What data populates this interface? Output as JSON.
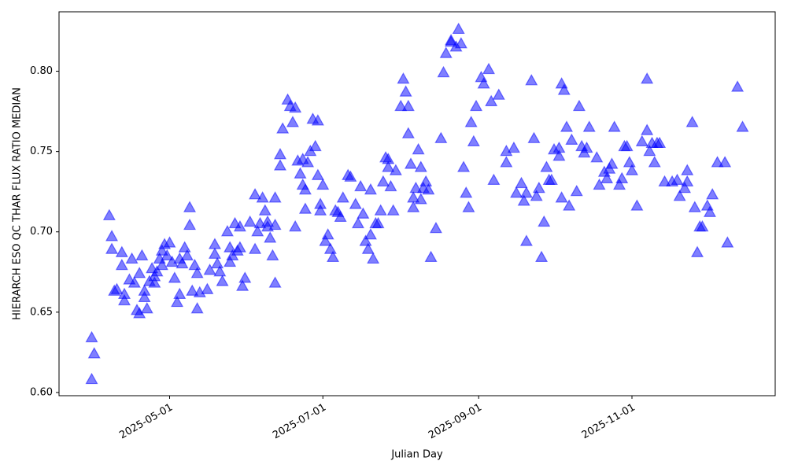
{
  "chart_data": {
    "type": "scatter",
    "xlabel": "Julian Day",
    "ylabel": "HIERARCH ESO QC THAR FLUX RATIO MEDIAN",
    "color": "#0000ff",
    "xlim": [
      "2025-03-18",
      "2025-12-28"
    ],
    "xticks": [
      "2025-05-01",
      "2025-07-01",
      "2025-09-01",
      "2025-11-01"
    ],
    "ylim": [
      0.598,
      0.837
    ],
    "yticks": [
      {
        "value": 0.6,
        "label": "0.60"
      },
      0.65,
      {
        "value": 0.7,
        "label": "0.70"
      },
      0.75,
      {
        "value": 0.8,
        "label": "0.80"
      }
    ],
    "x": [
      "2025-03-31",
      "2025-03-31",
      "2025-04-01",
      "2025-04-07",
      "2025-04-08",
      "2025-04-08",
      "2025-04-09",
      "2025-04-10",
      "2025-04-12",
      "2025-04-12",
      "2025-04-13",
      "2025-04-13",
      "2025-04-15",
      "2025-04-16",
      "2025-04-17",
      "2025-04-18",
      "2025-04-19",
      "2025-04-19",
      "2025-04-20",
      "2025-04-21",
      "2025-04-21",
      "2025-04-22",
      "2025-04-23",
      "2025-04-24",
      "2025-04-25",
      "2025-04-25",
      "2025-04-26",
      "2025-04-27",
      "2025-04-28",
      "2025-04-28",
      "2025-04-29",
      "2025-04-30",
      "2025-05-01",
      "2025-05-02",
      "2025-05-03",
      "2025-05-04",
      "2025-05-05",
      "2025-05-05",
      "2025-05-06",
      "2025-05-07",
      "2025-05-08",
      "2025-05-09",
      "2025-05-09",
      "2025-05-10",
      "2025-05-11",
      "2025-05-12",
      "2025-05-12",
      "2025-05-13",
      "2025-05-16",
      "2025-05-17",
      "2025-05-19",
      "2025-05-19",
      "2025-05-20",
      "2025-05-21",
      "2025-05-22",
      "2025-05-24",
      "2025-05-25",
      "2025-05-25",
      "2025-05-26",
      "2025-05-27",
      "2025-05-28",
      "2025-05-29",
      "2025-05-29",
      "2025-05-30",
      "2025-05-31",
      "2025-06-02",
      "2025-06-04",
      "2025-06-04",
      "2025-06-05",
      "2025-06-06",
      "2025-06-07",
      "2025-06-08",
      "2025-06-09",
      "2025-06-09",
      "2025-06-10",
      "2025-06-11",
      "2025-06-12",
      "2025-06-12",
      "2025-06-12",
      "2025-06-14",
      "2025-06-14",
      "2025-06-15",
      "2025-06-17",
      "2025-06-18",
      "2025-06-19",
      "2025-06-20",
      "2025-06-20",
      "2025-06-21",
      "2025-06-22",
      "2025-06-23",
      "2025-06-23",
      "2025-06-24",
      "2025-06-24",
      "2025-06-25",
      "2025-06-26",
      "2025-06-27",
      "2025-06-28",
      "2025-06-29",
      "2025-06-29",
      "2025-06-30",
      "2025-06-30",
      "2025-07-01",
      "2025-07-02",
      "2025-07-03",
      "2025-07-04",
      "2025-07-05",
      "2025-07-06",
      "2025-07-07",
      "2025-07-08",
      "2025-07-09",
      "2025-07-11",
      "2025-07-12",
      "2025-07-14",
      "2025-07-15",
      "2025-07-16",
      "2025-07-17",
      "2025-07-18",
      "2025-07-19",
      "2025-07-20",
      "2025-07-20",
      "2025-07-21",
      "2025-07-22",
      "2025-07-23",
      "2025-07-24",
      "2025-07-25",
      "2025-07-26",
      "2025-07-27",
      "2025-07-27",
      "2025-07-28",
      "2025-07-29",
      "2025-07-30",
      "2025-08-01",
      "2025-08-02",
      "2025-08-03",
      "2025-08-04",
      "2025-08-04",
      "2025-08-05",
      "2025-08-06",
      "2025-08-06",
      "2025-08-07",
      "2025-08-08",
      "2025-08-09",
      "2025-08-09",
      "2025-08-10",
      "2025-08-11",
      "2025-08-12",
      "2025-08-13",
      "2025-08-15",
      "2025-08-17",
      "2025-08-18",
      "2025-08-19",
      "2025-08-21",
      "2025-08-21",
      "2025-08-23",
      "2025-08-24",
      "2025-08-25",
      "2025-08-26",
      "2025-08-27",
      "2025-08-28",
      "2025-08-29",
      "2025-08-30",
      "2025-08-31",
      "2025-09-02",
      "2025-09-03",
      "2025-09-05",
      "2025-09-06",
      "2025-09-07",
      "2025-09-09",
      "2025-09-12",
      "2025-09-12",
      "2025-09-15",
      "2025-09-16",
      "2025-09-18",
      "2025-09-19",
      "2025-09-20",
      "2025-09-20",
      "2025-09-22",
      "2025-09-23",
      "2025-09-24",
      "2025-09-25",
      "2025-09-26",
      "2025-09-27",
      "2025-09-28",
      "2025-09-29",
      "2025-09-30",
      "2025-10-01",
      "2025-10-03",
      "2025-10-03",
      "2025-10-04",
      "2025-10-04",
      "2025-10-05",
      "2025-10-06",
      "2025-10-07",
      "2025-10-08",
      "2025-10-10",
      "2025-10-11",
      "2025-10-12",
      "2025-10-13",
      "2025-10-14",
      "2025-10-15",
      "2025-10-18",
      "2025-10-19",
      "2025-10-21",
      "2025-10-22",
      "2025-10-23",
      "2025-10-24",
      "2025-10-25",
      "2025-10-27",
      "2025-10-28",
      "2025-10-29",
      "2025-10-30",
      "2025-10-31",
      "2025-11-01",
      "2025-11-03",
      "2025-11-05",
      "2025-11-07",
      "2025-11-07",
      "2025-11-08",
      "2025-11-09",
      "2025-11-10",
      "2025-11-11",
      "2025-11-12",
      "2025-11-14",
      "2025-11-17",
      "2025-11-19",
      "2025-11-20",
      "2025-11-22",
      "2025-11-23",
      "2025-11-23",
      "2025-11-25",
      "2025-11-26",
      "2025-11-27",
      "2025-11-28",
      "2025-11-29",
      "2025-12-01",
      "2025-12-02",
      "2025-12-03",
      "2025-12-05",
      "2025-12-08",
      "2025-12-09",
      "2025-12-13",
      "2025-12-15"
    ],
    "values": [
      0.634,
      0.608,
      0.624,
      0.71,
      0.697,
      0.689,
      0.663,
      0.664,
      0.687,
      0.679,
      0.661,
      0.657,
      0.67,
      0.683,
      0.668,
      0.651,
      0.674,
      0.649,
      0.685,
      0.663,
      0.659,
      0.652,
      0.669,
      0.677,
      0.668,
      0.672,
      0.675,
      0.683,
      0.679,
      0.688,
      0.692,
      0.685,
      0.693,
      0.681,
      0.671,
      0.656,
      0.683,
      0.661,
      0.68,
      0.69,
      0.685,
      0.704,
      0.715,
      0.663,
      0.679,
      0.652,
      0.674,
      0.662,
      0.664,
      0.676,
      0.686,
      0.692,
      0.68,
      0.675,
      0.669,
      0.7,
      0.69,
      0.681,
      0.685,
      0.705,
      0.688,
      0.703,
      0.69,
      0.666,
      0.671,
      0.706,
      0.689,
      0.723,
      0.7,
      0.705,
      0.721,
      0.713,
      0.706,
      0.703,
      0.696,
      0.685,
      0.668,
      0.704,
      0.721,
      0.741,
      0.748,
      0.764,
      0.782,
      0.778,
      0.768,
      0.777,
      0.703,
      0.744,
      0.736,
      0.729,
      0.745,
      0.714,
      0.726,
      0.743,
      0.75,
      0.77,
      0.753,
      0.769,
      0.735,
      0.713,
      0.717,
      0.729,
      0.694,
      0.698,
      0.689,
      0.684,
      0.713,
      0.712,
      0.709,
      0.721,
      0.735,
      0.734,
      0.717,
      0.705,
      0.728,
      0.711,
      0.694,
      0.689,
      0.698,
      0.726,
      0.683,
      0.705,
      0.705,
      0.713,
      0.731,
      0.746,
      0.74,
      0.745,
      0.728,
      0.713,
      0.738,
      0.778,
      0.795,
      0.787,
      0.778,
      0.761,
      0.742,
      0.715,
      0.721,
      0.727,
      0.751,
      0.74,
      0.72,
      0.727,
      0.731,
      0.726,
      0.684,
      0.702,
      0.758,
      0.799,
      0.811,
      0.819,
      0.818,
      0.815,
      0.826,
      0.817,
      0.74,
      0.724,
      0.715,
      0.768,
      0.756,
      0.778,
      0.796,
      0.792,
      0.801,
      0.781,
      0.732,
      0.785,
      0.743,
      0.75,
      0.752,
      0.724,
      0.73,
      0.719,
      0.724,
      0.694,
      0.794,
      0.758,
      0.722,
      0.727,
      0.684,
      0.706,
      0.74,
      0.732,
      0.732,
      0.751,
      0.747,
      0.752,
      0.721,
      0.792,
      0.788,
      0.765,
      0.716,
      0.757,
      0.725,
      0.778,
      0.753,
      0.749,
      0.752,
      0.765,
      0.746,
      0.729,
      0.737,
      0.733,
      0.739,
      0.742,
      0.765,
      0.729,
      0.733,
      0.753,
      0.753,
      0.743,
      0.738,
      0.716,
      0.756,
      0.763,
      0.795,
      0.75,
      0.755,
      0.743,
      0.755,
      0.755,
      0.731,
      0.731,
      0.732,
      0.722,
      0.727,
      0.738,
      0.731,
      0.768,
      0.715,
      0.687,
      0.703,
      0.703,
      0.716,
      0.712,
      0.723,
      0.743,
      0.743,
      0.693,
      0.79,
      0.765
    ]
  }
}
